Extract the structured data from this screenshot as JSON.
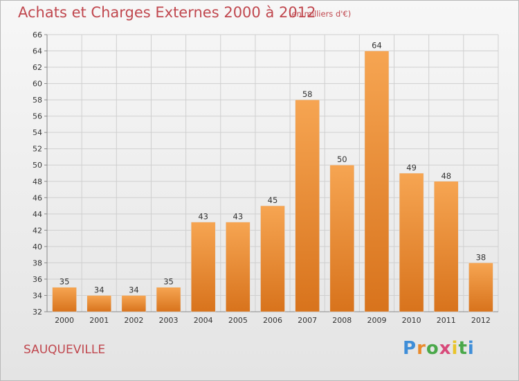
{
  "header": {
    "title": "Achats et Charges Externes 2000 à 2012",
    "subtitle": "(en milliers d'€)"
  },
  "footer": {
    "city": "SAUQUEVILLE",
    "logo": "Proxiti"
  },
  "colors": {
    "bar_light": "#f6a552",
    "bar_dark": "#dc7a22",
    "grid": "#cfcfcf",
    "title": "#c0474e"
  },
  "chart_data": {
    "type": "bar",
    "title": "Achats et Charges Externes 2000 à 2012",
    "subtitle": "(en milliers d'€)",
    "xlabel": "",
    "ylabel": "",
    "categories": [
      "2000",
      "2001",
      "2002",
      "2003",
      "2004",
      "2005",
      "2006",
      "2007",
      "2008",
      "2009",
      "2010",
      "2011",
      "2012"
    ],
    "values": [
      35,
      34,
      34,
      35,
      43,
      43,
      45,
      58,
      50,
      64,
      49,
      48,
      38
    ],
    "ylim": [
      32,
      66
    ],
    "yticks": [
      32,
      34,
      36,
      38,
      40,
      42,
      44,
      46,
      48,
      50,
      52,
      54,
      56,
      58,
      60,
      62,
      64,
      66
    ],
    "grid": true,
    "legend": "none"
  }
}
